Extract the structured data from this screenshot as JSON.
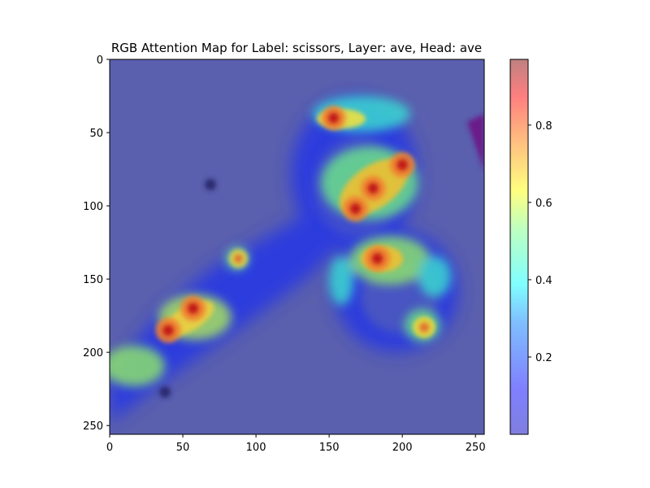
{
  "chart_data": {
    "type": "heatmap",
    "title": "RGB Attention Map for Label: scissors, Layer: ave, Head: ave",
    "xlabel": "",
    "ylabel": "",
    "xlim": [
      0,
      256
    ],
    "ylim": [
      256,
      0
    ],
    "x_ticks": [
      0,
      50,
      100,
      150,
      200,
      250
    ],
    "y_ticks": [
      0,
      50,
      100,
      150,
      200,
      250
    ],
    "colormap": "jet",
    "colorbar": {
      "range": [
        0.0,
        0.97
      ],
      "ticks": [
        0.2,
        0.4,
        0.6,
        0.8
      ],
      "tick_labels": [
        "0.2",
        "0.4",
        "0.6",
        "0.8"
      ]
    },
    "background_color": "#5a5fae",
    "hotspots": [
      {
        "x": 153,
        "y": 40,
        "v": 0.9
      },
      {
        "x": 200,
        "y": 72,
        "v": 0.95
      },
      {
        "x": 180,
        "y": 88,
        "v": 0.92
      },
      {
        "x": 168,
        "y": 102,
        "v": 0.97
      },
      {
        "x": 183,
        "y": 136,
        "v": 0.97
      },
      {
        "x": 57,
        "y": 170,
        "v": 0.95
      },
      {
        "x": 40,
        "y": 185,
        "v": 0.95
      },
      {
        "x": 215,
        "y": 183,
        "v": 0.7
      },
      {
        "x": 88,
        "y": 136,
        "v": 0.55
      }
    ]
  }
}
